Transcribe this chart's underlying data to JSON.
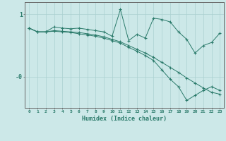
{
  "xlabel": "Humidex (Indice chaleur)",
  "bg_color": "#cce8e8",
  "line_color": "#2a7a6a",
  "grid_color": "#aad0d0",
  "xlim": [
    -0.5,
    23.5
  ],
  "ylim": [
    -0.5,
    1.2
  ],
  "yticks": [
    1.0,
    0.0
  ],
  "ytick_labels": [
    "1",
    "-0"
  ],
  "xticks": [
    0,
    1,
    2,
    3,
    4,
    5,
    6,
    7,
    8,
    9,
    10,
    11,
    12,
    13,
    14,
    15,
    16,
    17,
    18,
    19,
    20,
    21,
    22,
    23
  ],
  "line1_x": [
    0,
    1,
    2,
    3,
    4,
    5,
    6,
    7,
    8,
    9,
    10,
    11,
    12,
    13,
    14,
    15,
    16,
    17,
    18,
    19,
    20,
    21,
    22,
    23
  ],
  "line1_y": [
    0.78,
    0.72,
    0.72,
    0.8,
    0.78,
    0.77,
    0.78,
    0.76,
    0.74,
    0.72,
    0.65,
    1.08,
    0.58,
    0.68,
    0.62,
    0.94,
    0.92,
    0.88,
    0.72,
    0.6,
    0.38,
    0.5,
    0.55,
    0.7
  ],
  "line2_x": [
    0,
    1,
    2,
    3,
    4,
    5,
    6,
    7,
    8,
    9,
    10,
    11,
    12,
    13,
    14,
    15,
    16,
    17,
    18,
    19,
    20,
    21,
    22,
    23
  ],
  "line2_y": [
    0.78,
    0.72,
    0.72,
    0.74,
    0.73,
    0.72,
    0.71,
    0.69,
    0.67,
    0.64,
    0.6,
    0.56,
    0.5,
    0.44,
    0.38,
    0.31,
    0.23,
    0.15,
    0.07,
    -0.02,
    -0.1,
    -0.18,
    -0.25,
    -0.28
  ],
  "line3_x": [
    0,
    1,
    2,
    3,
    4,
    5,
    6,
    7,
    8,
    9,
    10,
    11,
    12,
    13,
    14,
    15,
    16,
    17,
    18,
    19,
    20,
    21,
    22,
    23
  ],
  "line3_y": [
    0.78,
    0.72,
    0.72,
    0.73,
    0.72,
    0.71,
    0.69,
    0.67,
    0.65,
    0.62,
    0.58,
    0.54,
    0.47,
    0.41,
    0.34,
    0.26,
    0.11,
    -0.04,
    -0.16,
    -0.38,
    -0.3,
    -0.22,
    -0.16,
    -0.22
  ]
}
